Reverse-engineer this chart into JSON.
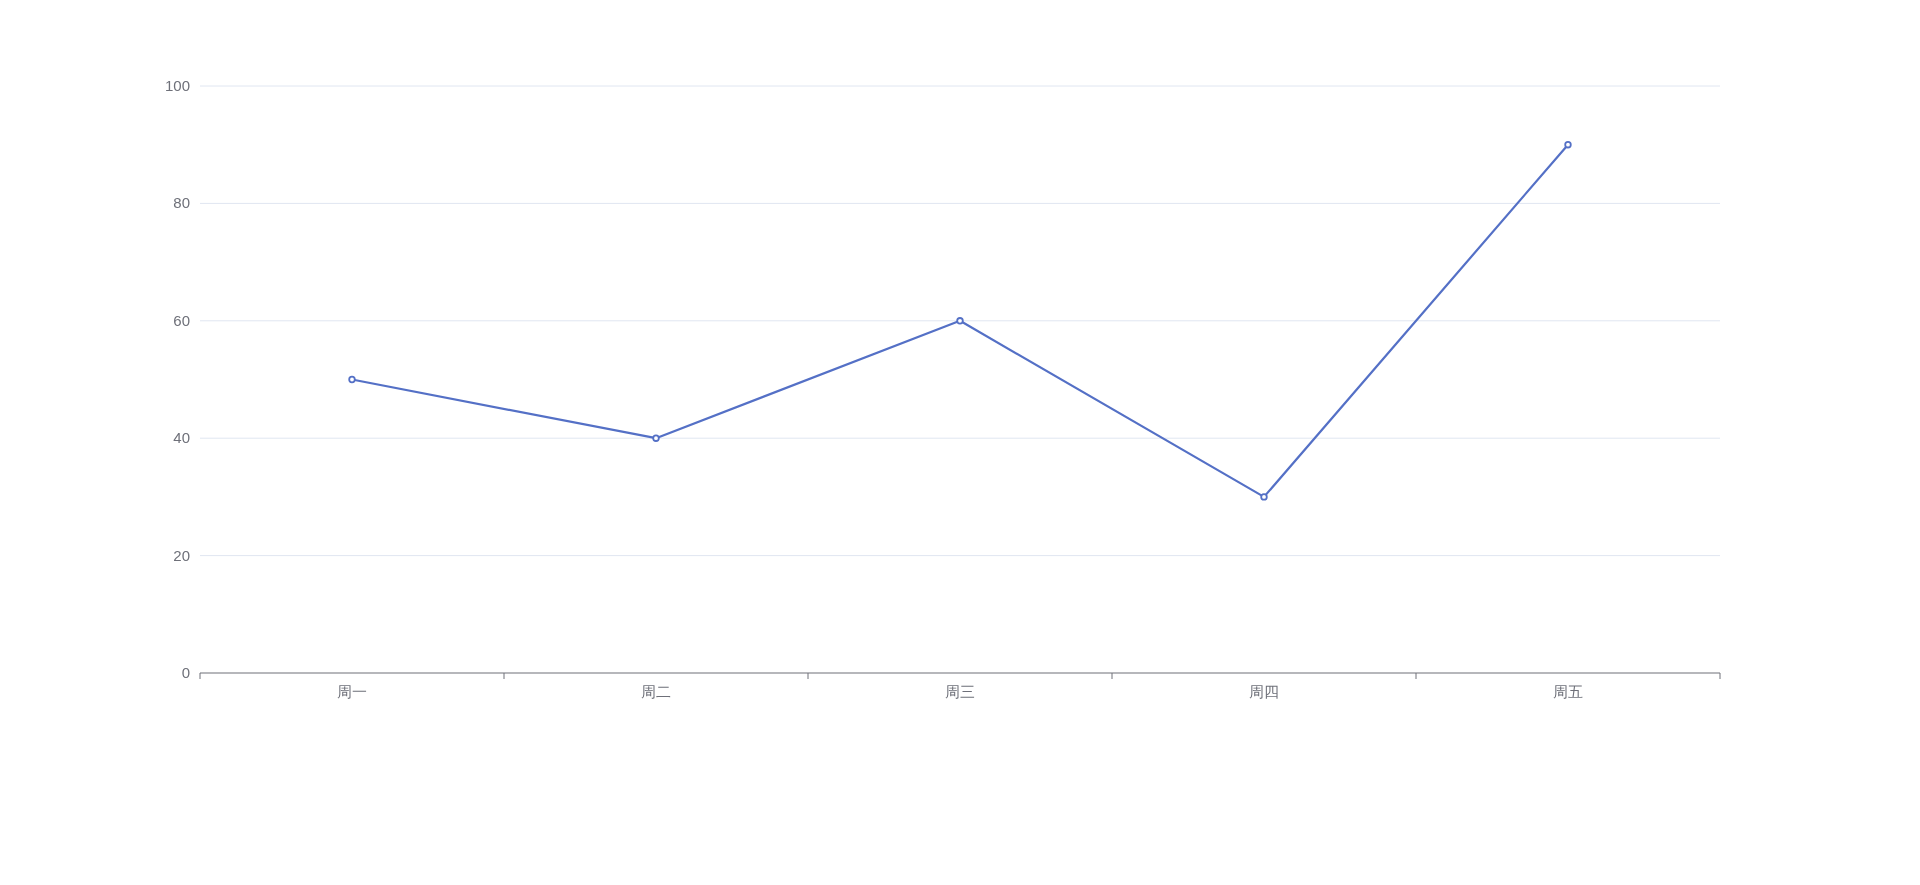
{
  "chart_data": {
    "type": "line",
    "categories": [
      "周一",
      "周二",
      "周三",
      "周四",
      "周五"
    ],
    "values": [
      50,
      40,
      60,
      30,
      90
    ],
    "color": "#5470c6",
    "ylim": [
      0,
      100
    ],
    "yticks": [
      0,
      20,
      40,
      60,
      80,
      100
    ],
    "grid": "y",
    "marker": "circle"
  }
}
